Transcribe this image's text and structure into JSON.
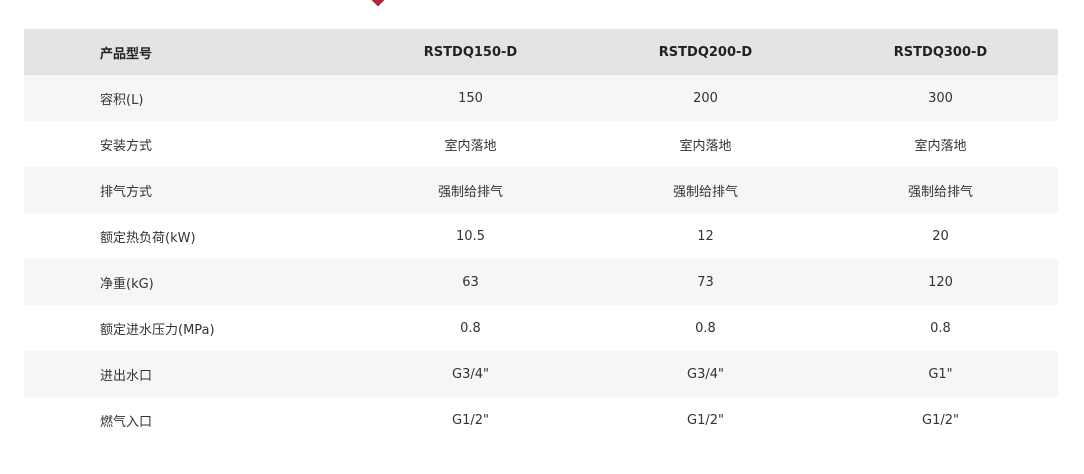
{
  "header": {
    "label": "产品型号",
    "models": [
      "RSTDQ150-D",
      "RSTDQ200-D",
      "RSTDQ300-D"
    ]
  },
  "rows": [
    {
      "label": "容积(L)",
      "values": [
        "150",
        "200",
        "300"
      ]
    },
    {
      "label": "安装方式",
      "values": [
        "室内落地",
        "室内落地",
        "室内落地"
      ]
    },
    {
      "label": "排气方式",
      "values": [
        "强制给排气",
        "强制给排气",
        "强制给排气"
      ]
    },
    {
      "label": "额定热负荷(kW)",
      "values": [
        "10.5",
        "12",
        "20"
      ]
    },
    {
      "label": "净重(kG)",
      "values": [
        "63",
        "73",
        "120"
      ]
    },
    {
      "label": "额定进水压力(MPa)",
      "values": [
        "0.8",
        "0.8",
        "0.8"
      ]
    },
    {
      "label": "进出水口",
      "values": [
        "G3/4\"",
        "G3/4\"",
        "G1\""
      ]
    },
    {
      "label": "燃气入口",
      "values": [
        "G1/2\"",
        "G1/2\"",
        "G1/2\""
      ]
    }
  ],
  "colors": {
    "header_bg": "#e4e4e4",
    "row_odd_bg": "#f6f6f6",
    "row_even_bg": "#ffffff",
    "marker": "#b0253a"
  }
}
